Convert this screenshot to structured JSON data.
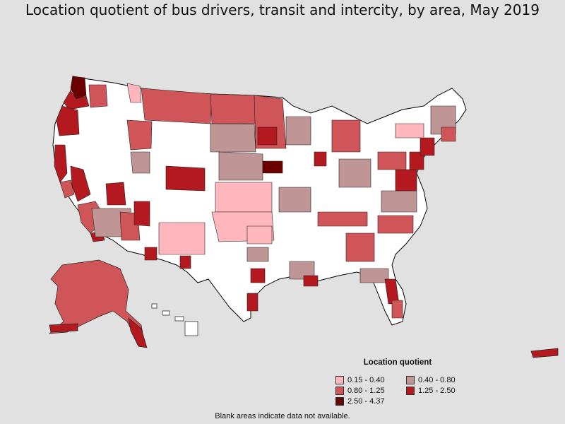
{
  "title": "Location quotient of bus drivers, transit and intercity, by area, May 2019",
  "legend": {
    "title": "Location quotient",
    "items": [
      {
        "label": "0.15 - 0.40",
        "color": "#ffb6bc"
      },
      {
        "label": "0.40 - 0.80",
        "color": "#bf9596"
      },
      {
        "label": "0.80 - 1.25",
        "color": "#cf5558"
      },
      {
        "label": "1.25 - 2.50",
        "color": "#b3191e"
      },
      {
        "label": "2.50 - 4.37",
        "color": "#6a0000"
      }
    ]
  },
  "footnote": "Blank areas indicate data not available.",
  "colors": {
    "background": "#e1e1e1",
    "no_data": "#ffffff",
    "border": "#000000"
  }
}
